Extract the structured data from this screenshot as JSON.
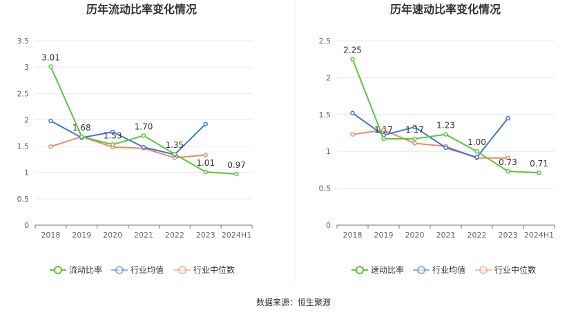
{
  "chart_data": [
    {
      "type": "line",
      "title": "历年流动比率变化情况",
      "categories": [
        "2018",
        "2019",
        "2020",
        "2021",
        "2022",
        "2023",
        "2024H1"
      ],
      "yticks": [
        "0",
        "0.5",
        "1",
        "1.5",
        "2",
        "2.5",
        "3",
        "3.5"
      ],
      "ylim": [
        0,
        3.5
      ],
      "series": [
        {
          "name": "流动比率",
          "color": "#5ac43b",
          "values": [
            3.01,
            1.68,
            1.53,
            1.7,
            1.35,
            1.01,
            0.97
          ],
          "labels": [
            "3.01",
            "1.68",
            "1.53",
            "1.70",
            "1.35",
            "1.01",
            "0.97"
          ]
        },
        {
          "name": "行业均值",
          "color": "#3c76d9",
          "values": [
            1.98,
            1.66,
            1.77,
            1.48,
            1.34,
            1.92,
            null
          ]
        },
        {
          "name": "行业中位数",
          "color": "#f0876a",
          "values": [
            1.49,
            1.68,
            1.48,
            1.46,
            1.28,
            1.33,
            null
          ]
        }
      ],
      "legend_position": "bottom"
    },
    {
      "type": "line",
      "title": "历年速动比率变化情况",
      "categories": [
        "2018",
        "2019",
        "2020",
        "2021",
        "2022",
        "2023",
        "2024H1"
      ],
      "yticks": [
        "0",
        "0.5",
        "1",
        "1.5",
        "2",
        "2.5"
      ],
      "ylim": [
        0,
        2.5
      ],
      "series": [
        {
          "name": "速动比率",
          "color": "#5ac43b",
          "values": [
            2.25,
            1.17,
            1.17,
            1.23,
            1.0,
            0.73,
            0.71
          ],
          "labels": [
            "2.25",
            "1.17",
            "1.17",
            "1.23",
            "1.00",
            "0.73",
            "0.71"
          ]
        },
        {
          "name": "行业均值",
          "color": "#3c76d9",
          "values": [
            1.52,
            1.22,
            1.33,
            1.05,
            0.92,
            1.45,
            null
          ]
        },
        {
          "name": "行业中位数",
          "color": "#f0876a",
          "values": [
            1.23,
            1.29,
            1.11,
            1.07,
            0.91,
            0.91,
            null
          ]
        }
      ],
      "legend_position": "bottom"
    }
  ],
  "source": "数据来源：恒生聚源"
}
